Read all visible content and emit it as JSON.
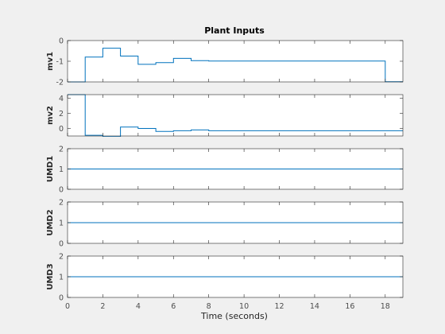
{
  "figure": {
    "title": "Plant Inputs",
    "xlabel": "Time (seconds)",
    "background": "#f0f0f0",
    "axes_background": "#ffffff",
    "axis_color": "#262626",
    "tick_color": "#4d4d4d",
    "line_color": "#0072bd"
  },
  "chart_data": [
    {
      "type": "line",
      "step": true,
      "ylabel": "mv1",
      "xlim": [
        0,
        19
      ],
      "ylim": [
        -2,
        0
      ],
      "yticks": [
        -2,
        -1,
        0
      ],
      "x": [
        0,
        1,
        2,
        3,
        4,
        5,
        6,
        7,
        8,
        9,
        10,
        11,
        12,
        13,
        14,
        15,
        16,
        17,
        18,
        19
      ],
      "y": [
        -2.0,
        -0.8,
        -0.37,
        -0.75,
        -1.15,
        -1.07,
        -0.86,
        -0.97,
        -0.99,
        -0.99,
        -0.99,
        -0.99,
        -0.99,
        -0.99,
        -0.99,
        -0.99,
        -0.99,
        -0.99,
        -1.99,
        -1.99
      ]
    },
    {
      "type": "line",
      "step": true,
      "ylabel": "mv2",
      "xlim": [
        0,
        19
      ],
      "ylim": [
        -1,
        4.5
      ],
      "yticks": [
        0,
        2,
        4
      ],
      "x": [
        0,
        1,
        2,
        3,
        4,
        5,
        6,
        7,
        8,
        9,
        10,
        11,
        12,
        13,
        14,
        15,
        16,
        17,
        18,
        19
      ],
      "y": [
        4.5,
        -0.9,
        -1.1,
        0.2,
        0.0,
        -0.4,
        -0.3,
        -0.2,
        -0.3,
        -0.3,
        -0.3,
        -0.3,
        -0.3,
        -0.3,
        -0.3,
        -0.3,
        -0.3,
        -0.3,
        -0.3,
        -0.3
      ]
    },
    {
      "type": "line",
      "ylabel": "UMD1",
      "xlim": [
        0,
        19
      ],
      "ylim": [
        0,
        2
      ],
      "yticks": [
        0,
        1,
        2
      ],
      "x": [
        0,
        19
      ],
      "y": [
        1,
        1
      ]
    },
    {
      "type": "line",
      "ylabel": "UMD2",
      "xlim": [
        0,
        19
      ],
      "ylim": [
        0,
        2
      ],
      "yticks": [
        0,
        1,
        2
      ],
      "x": [
        0,
        19
      ],
      "y": [
        1,
        1
      ]
    },
    {
      "type": "line",
      "ylabel": "UMD3",
      "xlim": [
        0,
        19
      ],
      "ylim": [
        0,
        2
      ],
      "yticks": [
        0,
        1,
        2
      ],
      "xticks": [
        0,
        2,
        4,
        6,
        8,
        10,
        12,
        14,
        16,
        18
      ],
      "x": [
        0,
        19
      ],
      "y": [
        1,
        1
      ]
    }
  ]
}
